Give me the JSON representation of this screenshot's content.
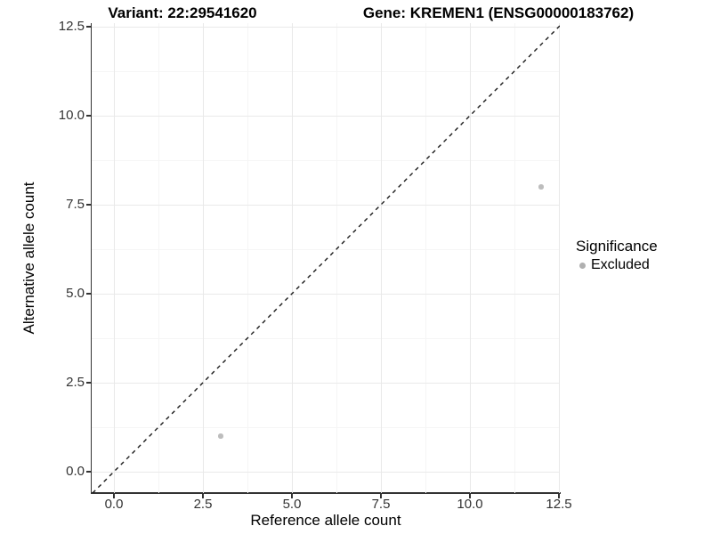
{
  "chart_data": {
    "type": "scatter",
    "title_left": "Variant: 22:29541620",
    "title_right": "Gene: KREMEN1 (ENSG00000183762)",
    "xlabel": "Reference allele count",
    "ylabel": "Alternative allele count",
    "x_tick_values": [
      0,
      2.5,
      5,
      7.5,
      10,
      12.5
    ],
    "x_tick_labels": [
      "0.0",
      "2.5",
      "5.0",
      "7.5",
      "10.0",
      "12.5"
    ],
    "y_tick_values": [
      0,
      2.5,
      5,
      7.5,
      10,
      12.5
    ],
    "y_tick_labels": [
      "0.0",
      "2.5",
      "5.0",
      "7.5",
      "10.0",
      "12.5"
    ],
    "minor_tick_values": [
      1.25,
      3.75,
      6.25,
      8.75,
      11.25
    ],
    "xlim": [
      -0.625,
      12.525
    ],
    "ylim": [
      -0.6,
      12.6
    ],
    "grid": "major+minor",
    "reference_line": {
      "style": "dashed",
      "equation": "y = x",
      "color": "#1a1a1a"
    },
    "series": [
      {
        "name": "Excluded",
        "color": "#bdbdbd",
        "points": [
          [
            3,
            1
          ],
          [
            12,
            8
          ]
        ]
      }
    ],
    "legend": {
      "title": "Significance",
      "position": "right",
      "entries": [
        {
          "label": "Excluded",
          "color": "#b0b0b0"
        }
      ]
    },
    "colors": {
      "background": "#ffffff",
      "grid_major": "#e9e9e9",
      "grid_minor": "#f5f5f5",
      "axis": "#333333",
      "tick_text": "#333333",
      "title_text": "#000000"
    }
  }
}
